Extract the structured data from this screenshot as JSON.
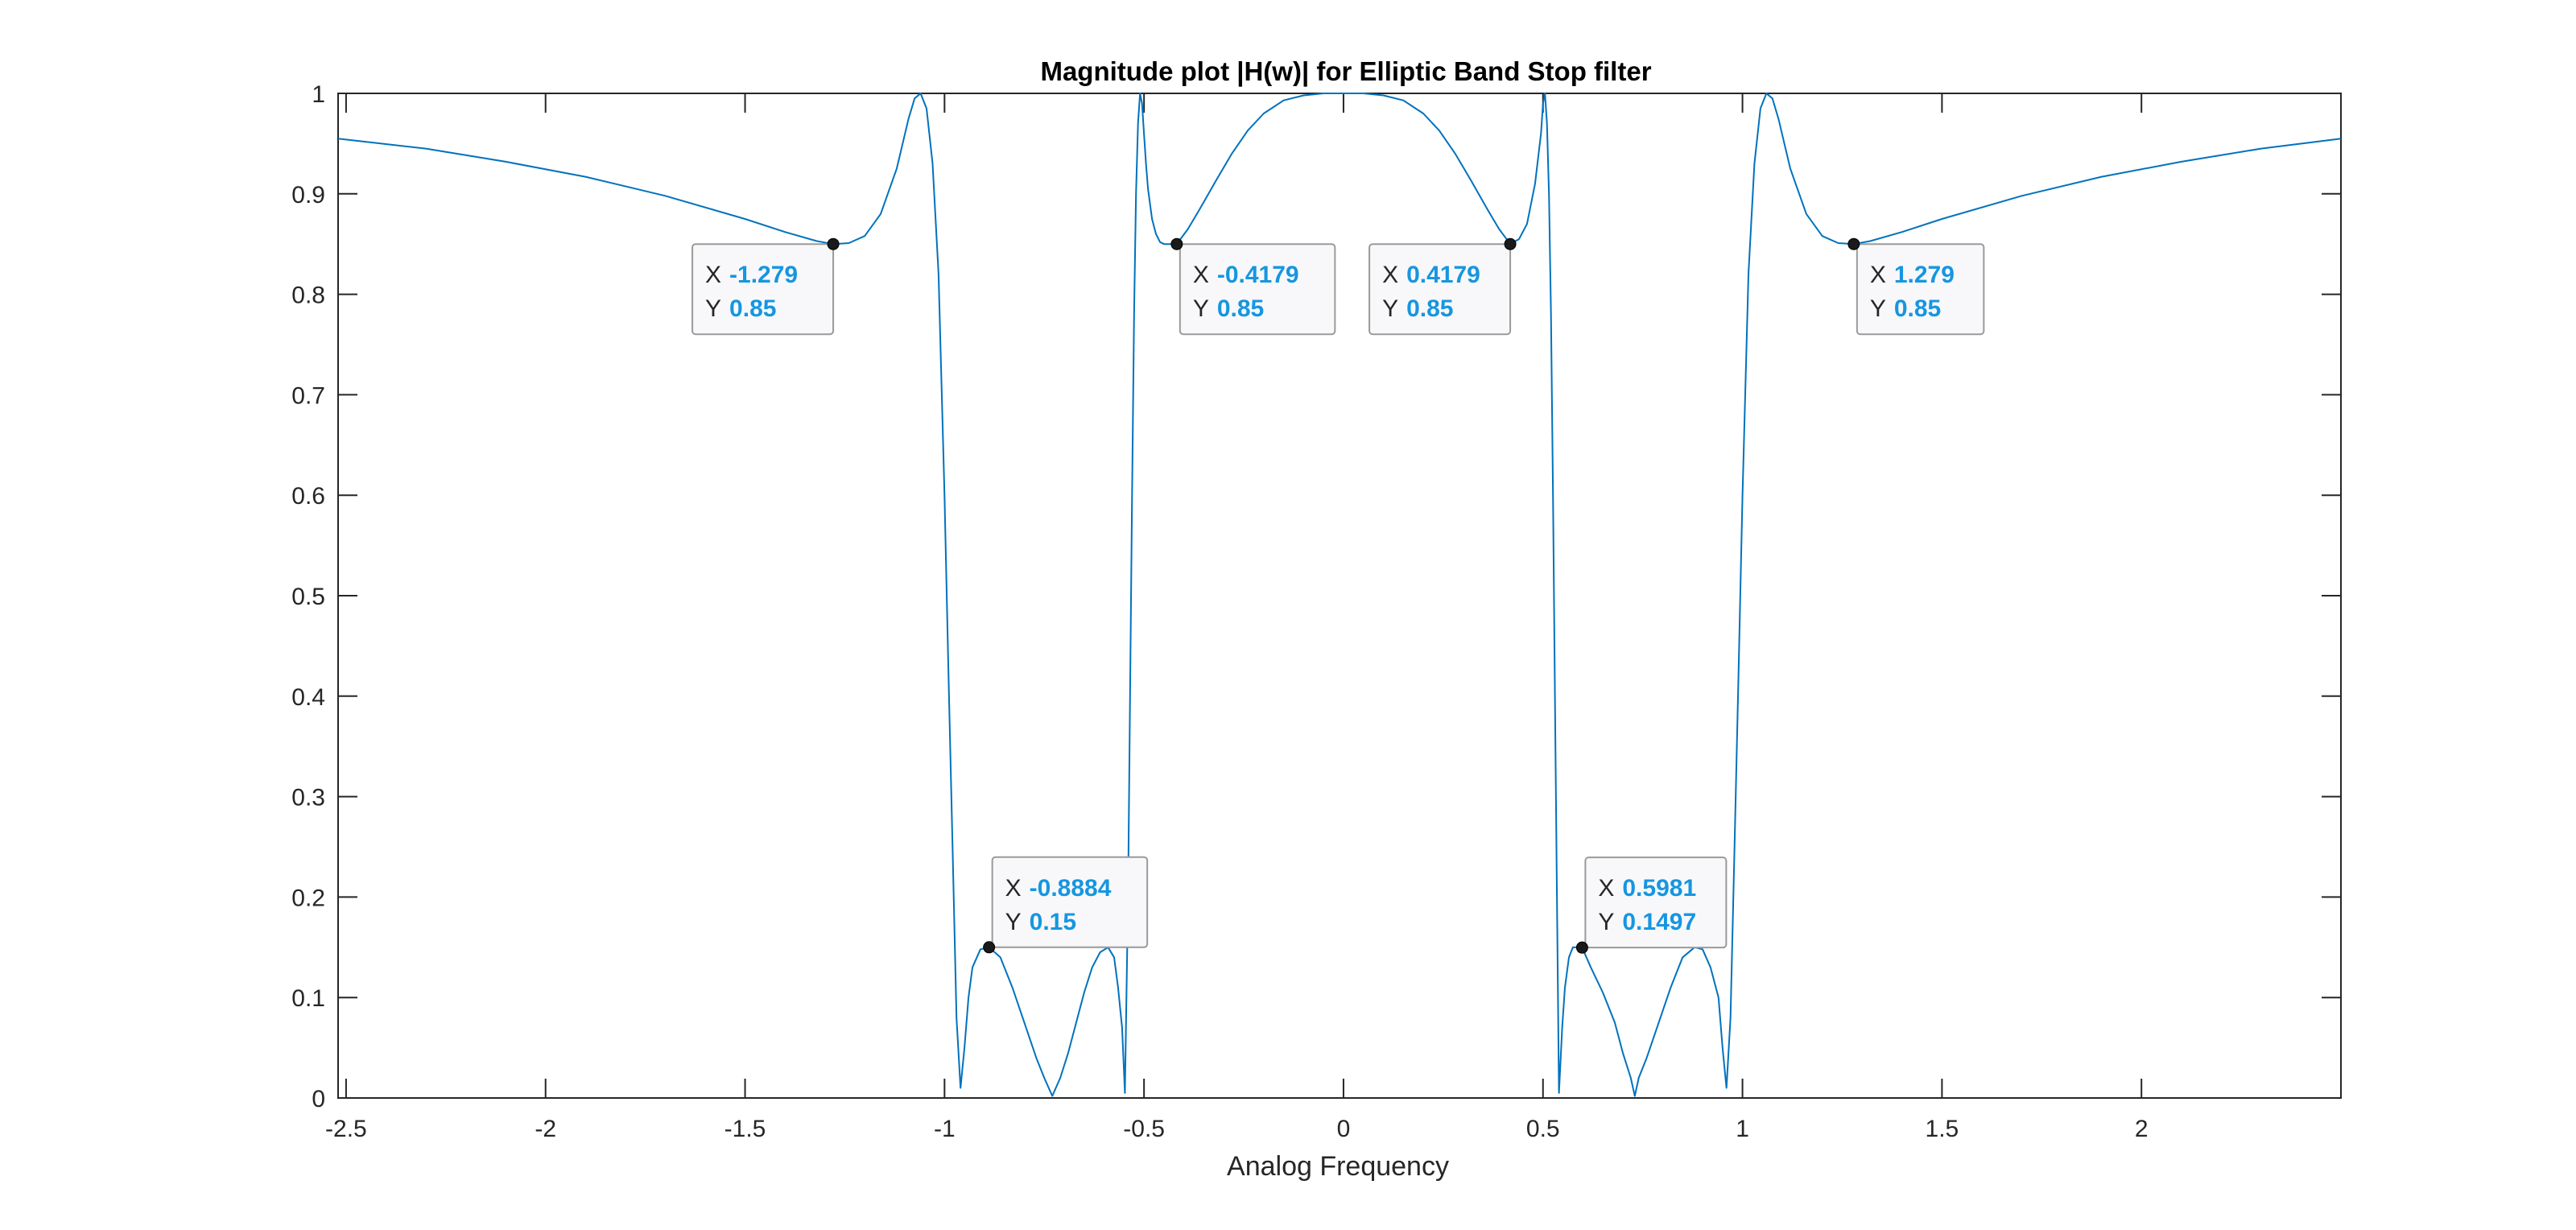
{
  "chart_data": {
    "type": "line",
    "title": "Magnitude plot |H(w)| for Elliptic Band Stop filter",
    "xlabel": "Analog Frequency",
    "ylabel": "",
    "xlim": [
      -2.52,
      2.5
    ],
    "ylim": [
      0,
      1
    ],
    "grid": false,
    "line_color": "#0072BD",
    "datatip_value_color": "#1696E0",
    "xticks": [
      -2.5,
      -2,
      -1.5,
      -1,
      -0.5,
      0,
      0.5,
      1,
      1.5,
      2
    ],
    "xtick_labels": [
      "-2.5",
      "-2",
      "-1.5",
      "-1",
      "-0.5",
      "0",
      "0.5",
      "1",
      "1.5",
      "2"
    ],
    "yticks": [
      0,
      0.1,
      0.2,
      0.3,
      0.4,
      0.5,
      0.6,
      0.7,
      0.8,
      0.9,
      1
    ],
    "ytick_labels": [
      "0",
      "0.1",
      "0.2",
      "0.3",
      "0.4",
      "0.5",
      "0.6",
      "0.7",
      "0.8",
      "0.9",
      "1"
    ],
    "series": [
      {
        "x": [
          -2.52,
          -2.3,
          -2.1,
          -1.9,
          -1.7,
          -1.5,
          -1.4,
          -1.32,
          -1.279,
          -1.24,
          -1.2,
          -1.16,
          -1.12,
          -1.09,
          -1.075,
          -1.06,
          -1.045,
          -1.03,
          -1.015,
          -1.0,
          -0.99,
          -0.98,
          -0.97,
          -0.96,
          -0.95,
          -0.94,
          -0.93,
          -0.91,
          -0.8884,
          -0.86,
          -0.83,
          -0.8,
          -0.77,
          -0.75,
          -0.73,
          -0.71,
          -0.69,
          -0.67,
          -0.65,
          -0.63,
          -0.61,
          -0.59,
          -0.575,
          -0.565,
          -0.555,
          -0.548,
          -0.54,
          -0.535,
          -0.53,
          -0.525,
          -0.52,
          -0.515,
          -0.51,
          -0.505,
          -0.5,
          -0.495,
          -0.49,
          -0.48,
          -0.47,
          -0.46,
          -0.45,
          -0.44,
          -0.43,
          -0.4179,
          -0.39,
          -0.36,
          -0.32,
          -0.28,
          -0.24,
          -0.2,
          -0.15,
          -0.1,
          -0.05,
          0.0,
          0.05,
          0.1,
          0.15,
          0.2,
          0.24,
          0.28,
          0.32,
          0.36,
          0.39,
          0.4179,
          0.44,
          0.46,
          0.48,
          0.495,
          0.5,
          0.505,
          0.51,
          0.515,
          0.52,
          0.525,
          0.53,
          0.535,
          0.54,
          0.548,
          0.555,
          0.565,
          0.575,
          0.5981,
          0.62,
          0.65,
          0.68,
          0.7,
          0.72,
          0.73,
          0.74,
          0.76,
          0.79,
          0.82,
          0.85,
          0.88,
          0.9,
          0.92,
          0.94,
          0.95,
          0.96,
          0.97,
          0.98,
          0.99,
          1.0,
          1.015,
          1.03,
          1.045,
          1.06,
          1.075,
          1.09,
          1.12,
          1.16,
          1.2,
          1.24,
          1.279,
          1.32,
          1.4,
          1.5,
          1.7,
          1.9,
          2.1,
          2.3,
          2.5
        ],
        "y": [
          0.955,
          0.945,
          0.932,
          0.917,
          0.898,
          0.875,
          0.862,
          0.853,
          0.85,
          0.851,
          0.858,
          0.88,
          0.925,
          0.975,
          0.995,
          1.0,
          0.985,
          0.93,
          0.82,
          0.6,
          0.42,
          0.25,
          0.08,
          0.01,
          0.05,
          0.1,
          0.13,
          0.148,
          0.15,
          0.14,
          0.11,
          0.075,
          0.04,
          0.02,
          0.002,
          0.02,
          0.045,
          0.075,
          0.105,
          0.13,
          0.145,
          0.15,
          0.14,
          0.11,
          0.07,
          0.005,
          0.2,
          0.4,
          0.6,
          0.78,
          0.9,
          0.97,
          1.0,
          0.99,
          0.96,
          0.93,
          0.905,
          0.875,
          0.86,
          0.852,
          0.85,
          0.85,
          0.85,
          0.85,
          0.865,
          0.885,
          0.913,
          0.94,
          0.963,
          0.98,
          0.993,
          0.998,
          1.0,
          1.0,
          1.0,
          0.998,
          0.993,
          0.98,
          0.963,
          0.94,
          0.913,
          0.885,
          0.865,
          0.85,
          0.855,
          0.87,
          0.91,
          0.96,
          0.99,
          1.0,
          0.97,
          0.9,
          0.78,
          0.6,
          0.4,
          0.2,
          0.005,
          0.07,
          0.11,
          0.14,
          0.15,
          0.1497,
          0.13,
          0.105,
          0.075,
          0.045,
          0.02,
          0.002,
          0.02,
          0.04,
          0.075,
          0.11,
          0.14,
          0.15,
          0.148,
          0.13,
          0.1,
          0.05,
          0.01,
          0.08,
          0.25,
          0.42,
          0.6,
          0.82,
          0.93,
          0.985,
          1.0,
          0.995,
          0.975,
          0.925,
          0.88,
          0.858,
          0.851,
          0.85,
          0.853,
          0.862,
          0.875,
          0.898,
          0.917,
          0.932,
          0.945,
          0.955
        ]
      }
    ],
    "datatips": [
      {
        "x": -1.279,
        "y": 0.85,
        "x_label": "X",
        "y_label": "Y",
        "x_text": "-1.279",
        "y_text": "0.85",
        "placement": "bottom-left"
      },
      {
        "x": -0.4179,
        "y": 0.85,
        "x_label": "X",
        "y_label": "Y",
        "x_text": "-0.4179",
        "y_text": "0.85",
        "placement": "bottom-right"
      },
      {
        "x": 0.4179,
        "y": 0.85,
        "x_label": "X",
        "y_label": "Y",
        "x_text": "0.4179",
        "y_text": "0.85",
        "placement": "bottom-left"
      },
      {
        "x": 1.279,
        "y": 0.85,
        "x_label": "X",
        "y_label": "Y",
        "x_text": "1.279",
        "y_text": "0.85",
        "placement": "bottom-right"
      },
      {
        "x": -0.8884,
        "y": 0.15,
        "x_label": "X",
        "y_label": "Y",
        "x_text": "-0.8884",
        "y_text": "0.15",
        "placement": "top-right"
      },
      {
        "x": 0.5981,
        "y": 0.1497,
        "x_label": "X",
        "y_label": "Y",
        "x_text": "0.5981",
        "y_text": "0.1497",
        "placement": "top-right"
      }
    ]
  }
}
